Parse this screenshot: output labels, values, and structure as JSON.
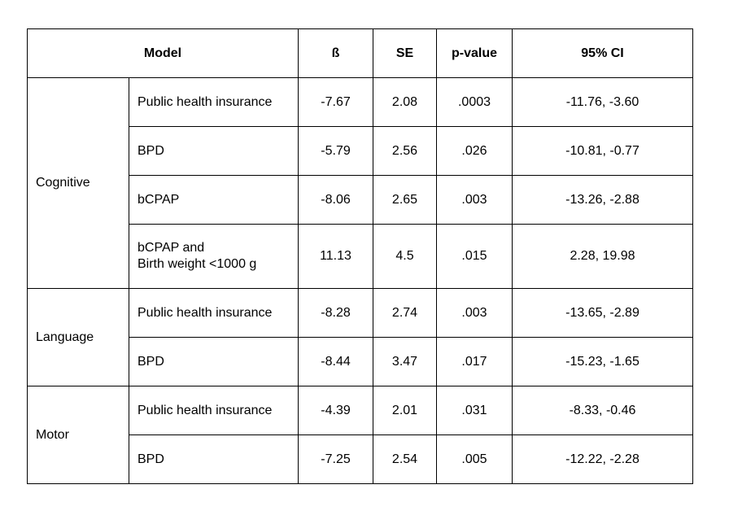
{
  "header": {
    "model": "Model",
    "beta": "ß",
    "se": "SE",
    "p_value": "p-value",
    "ci": "95% CI"
  },
  "groups": [
    {
      "name": "Cognitive",
      "rows": [
        {
          "predictor_lines": [
            "Public health insurance"
          ],
          "beta": "-7.67",
          "se": "2.08",
          "p": ".0003",
          "ci": "-11.76, -3.60"
        },
        {
          "predictor_lines": [
            "BPD"
          ],
          "beta": "-5.79",
          "se": "2.56",
          "p": ".026",
          "ci": "-10.81, -0.77"
        },
        {
          "predictor_lines": [
            "bCPAP"
          ],
          "beta": "-8.06",
          "se": "2.65",
          "p": ".003",
          "ci": "-13.26, -2.88"
        },
        {
          "predictor_lines": [
            "bCPAP and",
            "Birth weight <1000 g"
          ],
          "beta": "11.13",
          "se": "4.5",
          "p": ".015",
          "ci": "2.28, 19.98"
        }
      ]
    },
    {
      "name": "Language",
      "rows": [
        {
          "predictor_lines": [
            "Public health insurance"
          ],
          "beta": "-8.28",
          "se": "2.74",
          "p": ".003",
          "ci": "-13.65, -2.89"
        },
        {
          "predictor_lines": [
            "BPD"
          ],
          "beta": "-8.44",
          "se": "3.47",
          "p": ".017",
          "ci": "-15.23, -1.65"
        }
      ]
    },
    {
      "name": "Motor",
      "rows": [
        {
          "predictor_lines": [
            "Public health insurance"
          ],
          "beta": "-4.39",
          "se": "2.01",
          "p": ".031",
          "ci": "-8.33, -0.46"
        },
        {
          "predictor_lines": [
            "BPD"
          ],
          "beta": "-7.25",
          "se": "2.54",
          "p": ".005",
          "ci": "-12.22, -2.28"
        }
      ]
    }
  ]
}
